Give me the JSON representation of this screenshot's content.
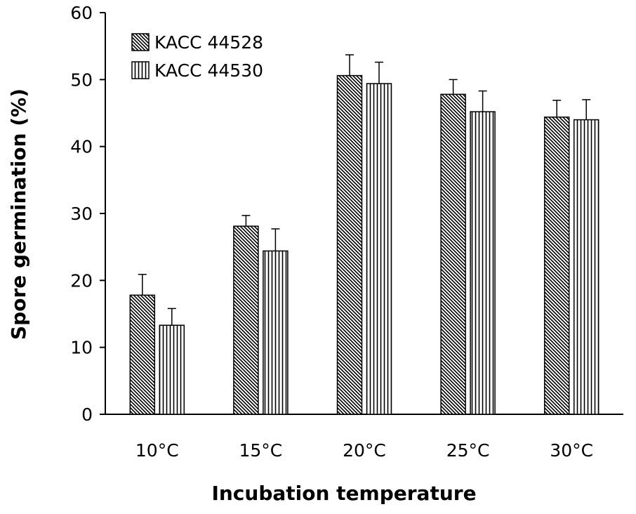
{
  "chart_data": {
    "type": "bar",
    "title": "",
    "xlabel": "Incubation temperature",
    "ylabel": "Spore germination (%)",
    "ylim": [
      0,
      60
    ],
    "yticks": [
      0,
      10,
      20,
      30,
      40,
      50,
      60
    ],
    "categories": [
      "10°C",
      "15°C",
      "20°C",
      "25°C",
      "30°C"
    ],
    "series": [
      {
        "name": "KACC 44528",
        "pattern": "diagonal-hatch",
        "values": [
          17.8,
          28.1,
          50.6,
          47.8,
          44.4
        ],
        "errors": [
          3.1,
          1.6,
          3.1,
          2.2,
          2.5
        ]
      },
      {
        "name": "KACC 44530",
        "pattern": "vertical-hatch",
        "values": [
          13.3,
          24.4,
          49.4,
          45.2,
          44.0
        ],
        "errors": [
          2.5,
          3.3,
          3.2,
          3.1,
          3.0
        ]
      }
    ],
    "legend_position": "top-left",
    "grid": false,
    "colors": {
      "bar_fill": "#ffffff",
      "stroke": "#000000"
    }
  }
}
